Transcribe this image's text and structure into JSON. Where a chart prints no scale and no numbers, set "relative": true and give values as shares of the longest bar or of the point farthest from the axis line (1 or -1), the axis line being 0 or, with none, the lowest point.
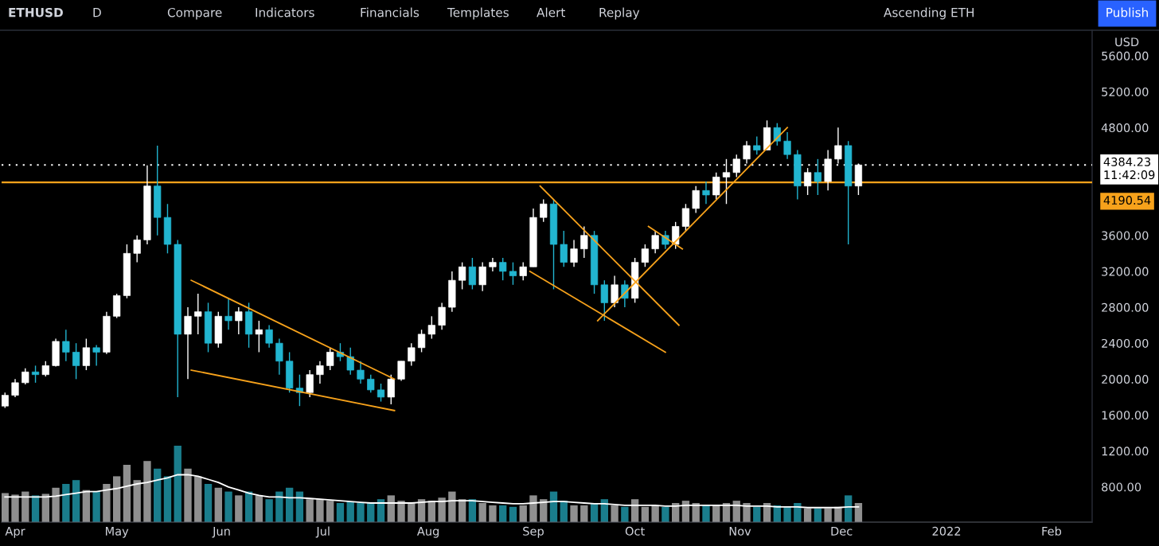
{
  "chart_data": [
    {
      "type": "candlestick",
      "title": "ETHUSD",
      "annotations": [
        "D",
        "Compare",
        "Indicators",
        "Financials",
        "Templates",
        "Alert",
        "Replay",
        "Ascending ETH",
        "Publish",
        "USD"
      ],
      "x": [
        "2021-03-29",
        "2021-04-01",
        "2021-04-04",
        "2021-04-07",
        "2021-04-10",
        "2021-04-13",
        "2021-04-16",
        "2021-04-19",
        "2021-04-22",
        "2021-04-25",
        "2021-04-28",
        "2021-05-01",
        "2021-05-04",
        "2021-05-07",
        "2021-05-10",
        "2021-05-13",
        "2021-05-16",
        "2021-05-19",
        "2021-05-22",
        "2021-05-25",
        "2021-05-28",
        "2021-05-31",
        "2021-06-03",
        "2021-06-06",
        "2021-06-09",
        "2021-06-12",
        "2021-06-15",
        "2021-06-18",
        "2021-06-21",
        "2021-06-24",
        "2021-06-27",
        "2021-06-30",
        "2021-07-03",
        "2021-07-06",
        "2021-07-09",
        "2021-07-12",
        "2021-07-15",
        "2021-07-18",
        "2021-07-21",
        "2021-07-24",
        "2021-07-27",
        "2021-07-30",
        "2021-08-02",
        "2021-08-05",
        "2021-08-08",
        "2021-08-11",
        "2021-08-14",
        "2021-08-17",
        "2021-08-20",
        "2021-08-23",
        "2021-08-26",
        "2021-08-29",
        "2021-09-01",
        "2021-09-04",
        "2021-09-07",
        "2021-09-10",
        "2021-09-13",
        "2021-09-16",
        "2021-09-19",
        "2021-09-22",
        "2021-09-25",
        "2021-09-28",
        "2021-10-01",
        "2021-10-04",
        "2021-10-07",
        "2021-10-10",
        "2021-10-13",
        "2021-10-16",
        "2021-10-19",
        "2021-10-22",
        "2021-10-25",
        "2021-10-28",
        "2021-10-31",
        "2021-11-03",
        "2021-11-06",
        "2021-11-09",
        "2021-11-12",
        "2021-11-15",
        "2021-11-18",
        "2021-11-21",
        "2021-11-24",
        "2021-11-27",
        "2021-11-30",
        "2021-12-03",
        "2021-12-06"
      ],
      "ohlc": [
        [
          1700,
          1850,
          1680,
          1820
        ],
        [
          1820,
          2000,
          1800,
          1960
        ],
        [
          1960,
          2120,
          1940,
          2080
        ],
        [
          2080,
          2150,
          1960,
          2050
        ],
        [
          2050,
          2200,
          2030,
          2150
        ],
        [
          2150,
          2450,
          2140,
          2420
        ],
        [
          2420,
          2550,
          2200,
          2300
        ],
        [
          2300,
          2400,
          2000,
          2150
        ],
        [
          2150,
          2450,
          2100,
          2350
        ],
        [
          2350,
          2380,
          2150,
          2300
        ],
        [
          2300,
          2750,
          2280,
          2700
        ],
        [
          2700,
          2950,
          2680,
          2930
        ],
        [
          2930,
          3500,
          2900,
          3400
        ],
        [
          3400,
          3600,
          3300,
          3550
        ],
        [
          3550,
          4380,
          3500,
          4150
        ],
        [
          4150,
          4600,
          3600,
          3800
        ],
        [
          3800,
          3950,
          3400,
          3500
        ],
        [
          3500,
          3550,
          1800,
          2500
        ],
        [
          2500,
          2800,
          2000,
          2700
        ],
        [
          2700,
          2950,
          2500,
          2750
        ],
        [
          2750,
          2850,
          2300,
          2400
        ],
        [
          2400,
          2750,
          2350,
          2700
        ],
        [
          2700,
          2900,
          2550,
          2650
        ],
        [
          2650,
          2800,
          2500,
          2750
        ],
        [
          2750,
          2850,
          2350,
          2500
        ],
        [
          2500,
          2650,
          2300,
          2550
        ],
        [
          2550,
          2600,
          2350,
          2400
        ],
        [
          2400,
          2450,
          2050,
          2200
        ],
        [
          2200,
          2300,
          1850,
          1900
        ],
        [
          1900,
          2050,
          1700,
          1850
        ],
        [
          1850,
          2100,
          1800,
          2050
        ],
        [
          2050,
          2200,
          1950,
          2150
        ],
        [
          2150,
          2350,
          2100,
          2300
        ],
        [
          2300,
          2400,
          2200,
          2250
        ],
        [
          2250,
          2350,
          2050,
          2100
        ],
        [
          2100,
          2200,
          1950,
          2000
        ],
        [
          2000,
          2050,
          1850,
          1880
        ],
        [
          1880,
          1950,
          1750,
          1800
        ],
        [
          1800,
          2050,
          1720,
          2000
        ],
        [
          2000,
          2200,
          1980,
          2200
        ],
        [
          2200,
          2400,
          2150,
          2350
        ],
        [
          2350,
          2550,
          2300,
          2500
        ],
        [
          2500,
          2700,
          2450,
          2600
        ],
        [
          2600,
          2850,
          2550,
          2800
        ],
        [
          2800,
          3200,
          2750,
          3100
        ],
        [
          3100,
          3300,
          3000,
          3250
        ],
        [
          3250,
          3350,
          3000,
          3050
        ],
        [
          3050,
          3300,
          2980,
          3250
        ],
        [
          3250,
          3350,
          3200,
          3300
        ],
        [
          3300,
          3350,
          3100,
          3200
        ],
        [
          3200,
          3300,
          3050,
          3150
        ],
        [
          3150,
          3300,
          3100,
          3250
        ],
        [
          3250,
          3900,
          3250,
          3800
        ],
        [
          3800,
          4000,
          3750,
          3950
        ],
        [
          3950,
          4000,
          3000,
          3500
        ],
        [
          3500,
          3650,
          3250,
          3300
        ],
        [
          3300,
          3550,
          3250,
          3450
        ],
        [
          3450,
          3700,
          3350,
          3600
        ],
        [
          3600,
          3650,
          2950,
          3050
        ],
        [
          3050,
          3100,
          2650,
          2850
        ],
        [
          2850,
          3150,
          2800,
          3050
        ],
        [
          3050,
          3100,
          2800,
          2900
        ],
        [
          2900,
          3350,
          2850,
          3300
        ],
        [
          3300,
          3500,
          3250,
          3450
        ],
        [
          3450,
          3650,
          3400,
          3600
        ],
        [
          3600,
          3650,
          3450,
          3500
        ],
        [
          3500,
          3750,
          3450,
          3700
        ],
        [
          3700,
          3950,
          3650,
          3900
        ],
        [
          3900,
          4150,
          3850,
          4100
        ],
        [
          4100,
          4200,
          3950,
          4050
        ],
        [
          4050,
          4300,
          4000,
          4250
        ],
        [
          4250,
          4450,
          3950,
          4300
        ],
        [
          4300,
          4500,
          4250,
          4450
        ],
        [
          4450,
          4650,
          4400,
          4600
        ],
        [
          4600,
          4700,
          4500,
          4550
        ],
        [
          4550,
          4880,
          4550,
          4800
        ],
        [
          4800,
          4850,
          4600,
          4650
        ],
        [
          4650,
          4750,
          4450,
          4500
        ],
        [
          4500,
          4550,
          4000,
          4150
        ],
        [
          4150,
          4350,
          4050,
          4300
        ],
        [
          4300,
          4450,
          4050,
          4200
        ],
        [
          4200,
          4550,
          4100,
          4450
        ],
        [
          4450,
          4800,
          4400,
          4600
        ],
        [
          4600,
          4650,
          3500,
          4150
        ],
        [
          4150,
          4400,
          4050,
          4384.23
        ]
      ],
      "colors": [
        "#ffffff",
        "#ffffff",
        "#ffffff",
        "#22b5d0",
        "#ffffff",
        "#ffffff",
        "#22b5d0",
        "#22b5d0",
        "#ffffff",
        "#22b5d0",
        "#ffffff",
        "#ffffff",
        "#ffffff",
        "#ffffff",
        "#ffffff",
        "#22b5d0",
        "#22b5d0",
        "#22b5d0",
        "#ffffff",
        "#ffffff",
        "#22b5d0",
        "#ffffff",
        "#22b5d0",
        "#ffffff",
        "#22b5d0",
        "#ffffff",
        "#22b5d0",
        "#22b5d0",
        "#22b5d0",
        "#22b5d0",
        "#ffffff",
        "#ffffff",
        "#ffffff",
        "#22b5d0",
        "#22b5d0",
        "#22b5d0",
        "#22b5d0",
        "#22b5d0",
        "#ffffff",
        "#ffffff",
        "#ffffff",
        "#ffffff",
        "#ffffff",
        "#ffffff",
        "#ffffff",
        "#ffffff",
        "#22b5d0",
        "#ffffff",
        "#ffffff",
        "#22b5d0",
        "#22b5d0",
        "#ffffff",
        "#ffffff",
        "#ffffff",
        "#22b5d0",
        "#22b5d0",
        "#ffffff",
        "#ffffff",
        "#22b5d0",
        "#22b5d0",
        "#ffffff",
        "#22b5d0",
        "#ffffff",
        "#ffffff",
        "#ffffff",
        "#22b5d0",
        "#ffffff",
        "#ffffff",
        "#ffffff",
        "#22b5d0",
        "#ffffff",
        "#ffffff",
        "#ffffff",
        "#ffffff",
        "#22b5d0",
        "#ffffff",
        "#22b5d0",
        "#22b5d0",
        "#22b5d0",
        "#ffffff",
        "#22b5d0",
        "#ffffff",
        "#ffffff",
        "#22b5d0",
        "#ffffff"
      ],
      "series": [
        {
          "type": "line",
          "color": "#f7a21b",
          "x": [
            "2021-05-23",
            "2021-07-22"
          ],
          "values": [
            3100,
            2000
          ]
        },
        {
          "type": "line",
          "color": "#f7a21b",
          "x": [
            "2021-05-23",
            "2021-07-22"
          ],
          "values": [
            2100,
            1650
          ]
        },
        {
          "type": "line",
          "color": "#f7a21b",
          "x": [
            "2021-09-03",
            "2021-10-14"
          ],
          "values": [
            4150,
            2600
          ]
        },
        {
          "type": "line",
          "color": "#f7a21b",
          "x": [
            "2021-08-31",
            "2021-10-10"
          ],
          "values": [
            3200,
            2300
          ]
        },
        {
          "type": "line",
          "color": "#f7a21b",
          "x": [
            "2021-09-20",
            "2021-11-15"
          ],
          "values": [
            2650,
            4800
          ]
        },
        {
          "type": "line",
          "color": "#f7a21b",
          "x": [
            "2021-10-05",
            "2021-10-15"
          ],
          "values": [
            3700,
            3450
          ]
        }
      ],
      "ref_lines": [
        {
          "axis": "y",
          "value": 4384.23,
          "label": "4384.23\n11:42:09",
          "color": "#ffffff",
          "line_style": "dotted"
        },
        {
          "axis": "y",
          "value": 4190.54,
          "label": "4190.54",
          "color": "#f7a21b",
          "line_style": "solid"
        }
      ],
      "xlim": [
        "2021-03-28",
        "2022-02-13"
      ],
      "ylim": [
        408,
        5884
      ],
      "yticks": [
        {
          "value": 800,
          "label": "800.00"
        },
        {
          "value": 1200,
          "label": "1200.00"
        },
        {
          "value": 1600,
          "label": "1600.00"
        },
        {
          "value": 2000,
          "label": "2000.00"
        },
        {
          "value": 2400,
          "label": "2400.00"
        },
        {
          "value": 2800,
          "label": "2800.00"
        },
        {
          "value": 3200,
          "label": "3200.00"
        },
        {
          "value": 3600,
          "label": "3600.00"
        },
        {
          "value": 4800,
          "label": "4800.00"
        },
        {
          "value": 5200,
          "label": "5200.00"
        },
        {
          "value": 5600,
          "label": "5600.00"
        }
      ],
      "tick_labels": "y",
      "grid": false,
      "legend": false
    },
    {
      "type": "bar",
      "relative": true,
      "x": [
        "2021-03-29",
        "2021-04-01",
        "2021-04-04",
        "2021-04-07",
        "2021-04-10",
        "2021-04-13",
        "2021-04-16",
        "2021-04-19",
        "2021-04-22",
        "2021-04-25",
        "2021-04-28",
        "2021-05-01",
        "2021-05-04",
        "2021-05-07",
        "2021-05-10",
        "2021-05-13",
        "2021-05-16",
        "2021-05-19",
        "2021-05-22",
        "2021-05-25",
        "2021-05-28",
        "2021-05-31",
        "2021-06-03",
        "2021-06-06",
        "2021-06-09",
        "2021-06-12",
        "2021-06-15",
        "2021-06-18",
        "2021-06-21",
        "2021-06-24",
        "2021-06-27",
        "2021-06-30",
        "2021-07-03",
        "2021-07-06",
        "2021-07-09",
        "2021-07-12",
        "2021-07-15",
        "2021-07-18",
        "2021-07-21",
        "2021-07-24",
        "2021-07-27",
        "2021-07-30",
        "2021-08-02",
        "2021-08-05",
        "2021-08-08",
        "2021-08-11",
        "2021-08-14",
        "2021-08-17",
        "2021-08-20",
        "2021-08-23",
        "2021-08-26",
        "2021-08-29",
        "2021-09-01",
        "2021-09-04",
        "2021-09-07",
        "2021-09-10",
        "2021-09-13",
        "2021-09-16",
        "2021-09-19",
        "2021-09-22",
        "2021-09-25",
        "2021-09-28",
        "2021-10-01",
        "2021-10-04",
        "2021-10-07",
        "2021-10-10",
        "2021-10-13",
        "2021-10-16",
        "2021-10-19",
        "2021-10-22",
        "2021-10-25",
        "2021-10-28",
        "2021-10-31",
        "2021-11-03",
        "2021-11-06",
        "2021-11-09",
        "2021-11-12",
        "2021-11-15",
        "2021-11-18",
        "2021-11-21",
        "2021-11-24",
        "2021-11-27",
        "2021-11-30",
        "2021-12-03",
        "2021-12-06"
      ],
      "series": [
        {
          "type": "bar",
          "values": [
            0.38,
            0.36,
            0.4,
            0.35,
            0.37,
            0.45,
            0.5,
            0.55,
            0.42,
            0.4,
            0.5,
            0.6,
            0.75,
            0.55,
            0.8,
            0.7,
            0.6,
            1.0,
            0.7,
            0.6,
            0.5,
            0.45,
            0.4,
            0.35,
            0.4,
            0.35,
            0.3,
            0.4,
            0.45,
            0.4,
            0.3,
            0.3,
            0.28,
            0.25,
            0.27,
            0.25,
            0.25,
            0.3,
            0.35,
            0.28,
            0.25,
            0.3,
            0.28,
            0.32,
            0.4,
            0.3,
            0.3,
            0.25,
            0.22,
            0.22,
            0.2,
            0.22,
            0.35,
            0.3,
            0.4,
            0.28,
            0.22,
            0.22,
            0.25,
            0.3,
            0.22,
            0.2,
            0.3,
            0.2,
            0.22,
            0.2,
            0.25,
            0.28,
            0.25,
            0.22,
            0.22,
            0.25,
            0.28,
            0.25,
            0.2,
            0.25,
            0.22,
            0.2,
            0.25,
            0.18,
            0.18,
            0.18,
            0.2,
            0.35,
            0.25
          ],
          "colors": [
            "#8f8f8f",
            "#8f8f8f",
            "#8f8f8f",
            "#1a7d8c",
            "#8f8f8f",
            "#8f8f8f",
            "#1a7d8c",
            "#1a7d8c",
            "#8f8f8f",
            "#1a7d8c",
            "#8f8f8f",
            "#8f8f8f",
            "#8f8f8f",
            "#8f8f8f",
            "#8f8f8f",
            "#1a7d8c",
            "#1a7d8c",
            "#1a7d8c",
            "#8f8f8f",
            "#8f8f8f",
            "#1a7d8c",
            "#8f8f8f",
            "#1a7d8c",
            "#8f8f8f",
            "#1a7d8c",
            "#8f8f8f",
            "#1a7d8c",
            "#1a7d8c",
            "#1a7d8c",
            "#1a7d8c",
            "#8f8f8f",
            "#8f8f8f",
            "#8f8f8f",
            "#1a7d8c",
            "#1a7d8c",
            "#1a7d8c",
            "#1a7d8c",
            "#1a7d8c",
            "#8f8f8f",
            "#8f8f8f",
            "#8f8f8f",
            "#8f8f8f",
            "#8f8f8f",
            "#8f8f8f",
            "#8f8f8f",
            "#8f8f8f",
            "#1a7d8c",
            "#8f8f8f",
            "#8f8f8f",
            "#1a7d8c",
            "#1a7d8c",
            "#8f8f8f",
            "#8f8f8f",
            "#8f8f8f",
            "#1a7d8c",
            "#1a7d8c",
            "#8f8f8f",
            "#8f8f8f",
            "#1a7d8c",
            "#1a7d8c",
            "#8f8f8f",
            "#1a7d8c",
            "#8f8f8f",
            "#8f8f8f",
            "#8f8f8f",
            "#1a7d8c",
            "#8f8f8f",
            "#8f8f8f",
            "#8f8f8f",
            "#1a7d8c",
            "#8f8f8f",
            "#8f8f8f",
            "#8f8f8f",
            "#8f8f8f",
            "#1a7d8c",
            "#8f8f8f",
            "#1a7d8c",
            "#1a7d8c",
            "#1a7d8c",
            "#8f8f8f",
            "#1a7d8c",
            "#8f8f8f",
            "#8f8f8f",
            "#1a7d8c",
            "#8f8f8f"
          ]
        },
        {
          "type": "line",
          "color": "#ffffff",
          "values": [
            0.33,
            0.33,
            0.33,
            0.33,
            0.33,
            0.34,
            0.36,
            0.38,
            0.4,
            0.4,
            0.42,
            0.44,
            0.47,
            0.5,
            0.52,
            0.55,
            0.58,
            0.62,
            0.62,
            0.6,
            0.56,
            0.52,
            0.46,
            0.42,
            0.38,
            0.35,
            0.33,
            0.33,
            0.32,
            0.32,
            0.31,
            0.3,
            0.29,
            0.28,
            0.27,
            0.26,
            0.25,
            0.25,
            0.25,
            0.25,
            0.25,
            0.26,
            0.27,
            0.27,
            0.28,
            0.28,
            0.28,
            0.27,
            0.26,
            0.25,
            0.24,
            0.24,
            0.25,
            0.26,
            0.27,
            0.27,
            0.26,
            0.25,
            0.24,
            0.24,
            0.23,
            0.22,
            0.22,
            0.22,
            0.22,
            0.21,
            0.21,
            0.22,
            0.22,
            0.22,
            0.22,
            0.22,
            0.22,
            0.21,
            0.21,
            0.21,
            0.2,
            0.2,
            0.2,
            0.19,
            0.19,
            0.19,
            0.19,
            0.2,
            0.2
          ]
        }
      ],
      "xlim": [
        "2021-03-28",
        "2022-02-13"
      ],
      "xticks": [
        {
          "value": "2021-04-01",
          "label": "Apr"
        },
        {
          "value": "2021-05-01",
          "label": "May"
        },
        {
          "value": "2021-06-01",
          "label": "Jun"
        },
        {
          "value": "2021-07-01",
          "label": "Jul"
        },
        {
          "value": "2021-08-01",
          "label": "Aug"
        },
        {
          "value": "2021-09-01",
          "label": "Sep"
        },
        {
          "value": "2021-10-01",
          "label": "Oct"
        },
        {
          "value": "2021-11-01",
          "label": "Nov"
        },
        {
          "value": "2021-12-01",
          "label": "Dec"
        },
        {
          "value": "2022-01-01",
          "label": "2022"
        },
        {
          "value": "2022-02-01",
          "label": "Feb"
        }
      ],
      "tick_labels": "x",
      "grid": false,
      "legend": false
    }
  ]
}
